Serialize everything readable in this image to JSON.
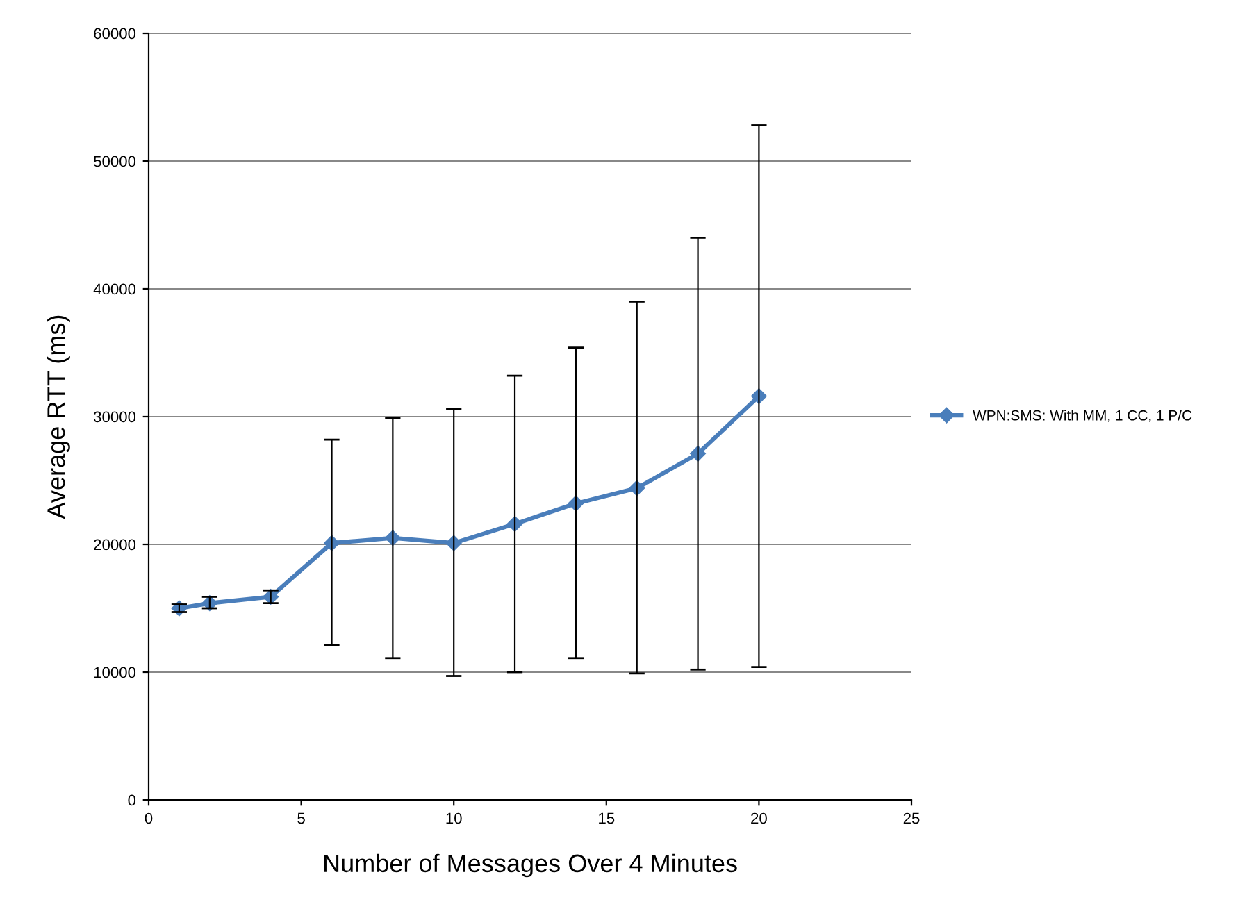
{
  "chart_data": {
    "type": "line",
    "xlabel": "Number of Messages Over 4 Minutes",
    "ylabel": "Average RTT (ms)",
    "x": [
      1,
      2,
      4,
      6,
      8,
      10,
      12,
      14,
      16,
      18,
      20
    ],
    "series": [
      {
        "name": "WPN:SMS: With MM, 1 CC, 1 P/C",
        "color": "#4a7ebb",
        "values": [
          15000,
          15400,
          15900,
          20100,
          20500,
          20100,
          21600,
          23200,
          24400,
          27100,
          31600
        ],
        "errors": [
          [
            14700,
            15300
          ],
          [
            15000,
            15900
          ],
          [
            15400,
            16400
          ],
          [
            12100,
            28200
          ],
          [
            11100,
            29900
          ],
          [
            9700,
            30600
          ],
          [
            10000,
            33200
          ],
          [
            11100,
            35400
          ],
          [
            9900,
            39000
          ],
          [
            10200,
            44000
          ],
          [
            10400,
            52800
          ]
        ]
      }
    ],
    "xlim": [
      0,
      25
    ],
    "xticks": [
      0,
      5,
      10,
      15,
      20,
      25
    ],
    "ylim": [
      0,
      60000
    ],
    "yticks": [
      0,
      10000,
      20000,
      30000,
      40000,
      50000,
      60000
    ],
    "grid": "y",
    "legend": "right",
    "marker": "diamond",
    "line_style": "solid"
  }
}
